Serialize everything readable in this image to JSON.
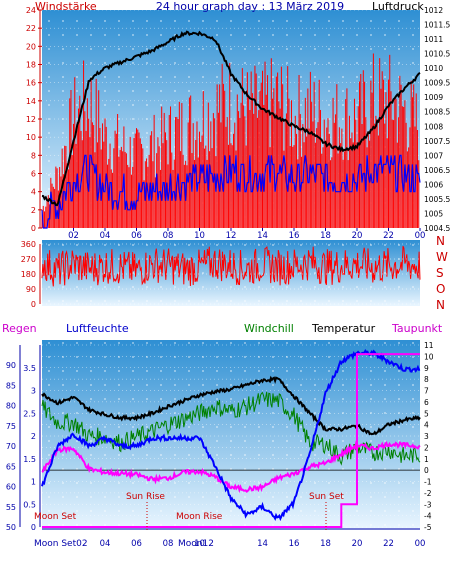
{
  "header": {
    "title": "24 hour graph day : 13 März 2019",
    "left_label": "Windstärke",
    "right_label": "Luftdruck"
  },
  "bottom_header": {
    "regen": "Regen",
    "luftfeuchte": "Luftfeuchte",
    "windchill": "Windchill",
    "temperatur": "Temperatur",
    "taupunkt": "Taupunkt"
  },
  "colors": {
    "wind": "#ff0000",
    "gust": "#ff0000",
    "avg_wind": "#0000ff",
    "pressure": "#000000",
    "direction": "#ff0000",
    "rain": "#ff00ff",
    "humidity": "#0000ff",
    "windchill": "#008000",
    "temperature": "#000000",
    "dewpoint": "#ff00ff",
    "axis_left": "#cc0000",
    "axis_blue": "#0000aa",
    "astro_text": "#cc0000"
  },
  "x_ticks": [
    "02",
    "04",
    "06",
    "08",
    "10",
    "12",
    "14",
    "16",
    "18",
    "20",
    "22",
    "00"
  ],
  "chart_data": [
    {
      "type": "line",
      "name": "wind-pressure",
      "title": "24 hour graph day : 13 März 2019",
      "ylabel": "Windstärke",
      "ylabel_right": "Luftdruck",
      "ylim": [
        0,
        24
      ],
      "y_ticks": [
        0,
        2,
        4,
        6,
        8,
        10,
        12,
        14,
        16,
        18,
        20,
        22,
        24
      ],
      "ylim_right": [
        1004.5,
        1012
      ],
      "y_ticks_right": [
        1004.5,
        1005,
        1005.5,
        1006,
        1006.5,
        1007,
        1007.5,
        1008,
        1008.5,
        1009,
        1009.5,
        1010,
        1010.5,
        1011,
        1011.5,
        1012
      ],
      "x_hours": [
        0,
        1,
        2,
        3,
        4,
        5,
        6,
        7,
        8,
        9,
        10,
        11,
        12,
        13,
        14,
        15,
        16,
        17,
        18,
        19,
        20,
        21,
        22,
        23,
        24
      ],
      "series": [
        {
          "name": "Windstärke",
          "values": [
            2,
            6,
            12,
            14,
            10,
            9,
            8,
            9,
            10,
            11,
            12,
            13,
            14,
            13,
            13,
            14,
            12,
            13,
            12,
            12,
            12,
            14,
            14,
            13,
            11
          ]
        },
        {
          "name": "Luftdruck",
          "values": [
            1005.6,
            1005.3,
            1007.5,
            1009.6,
            1010.0,
            1010.2,
            1010.4,
            1010.6,
            1010.9,
            1011.2,
            1011.2,
            1011.0,
            1009.8,
            1009.1,
            1008.6,
            1008.3,
            1008.0,
            1007.8,
            1007.4,
            1007.2,
            1007.3,
            1007.9,
            1008.7,
            1009.3,
            1009.8
          ]
        }
      ]
    },
    {
      "type": "line",
      "name": "wind-direction",
      "ylim": [
        0,
        360
      ],
      "y_ticks": [
        0,
        90,
        180,
        270,
        360
      ],
      "compass": [
        "N",
        "W",
        "S",
        "O",
        "N"
      ],
      "x_hours": [
        0,
        1,
        2,
        3,
        4,
        5,
        6,
        7,
        8,
        9,
        10,
        11,
        12,
        13,
        14,
        15,
        16,
        17,
        18,
        19,
        20,
        21,
        22,
        23,
        24
      ],
      "series": [
        {
          "name": "Windrichtung",
          "values": [
            250,
            200,
            240,
            210,
            230,
            220,
            200,
            240,
            230,
            210,
            220,
            250,
            230,
            210,
            240,
            220,
            230,
            250,
            220,
            230,
            240,
            220,
            230,
            240,
            230
          ]
        }
      ]
    },
    {
      "type": "line",
      "name": "temperature-humidity",
      "ylim": [
        -5,
        11
      ],
      "y_ticks": [
        -5,
        -4,
        -3,
        -2,
        -1,
        0,
        1,
        2,
        3,
        4,
        5,
        6,
        7,
        8,
        9,
        10,
        11
      ],
      "humidity_ticks": [
        50,
        55,
        60,
        65,
        70,
        75,
        80,
        85,
        90
      ],
      "humidity_ylim": [
        50,
        95
      ],
      "rain_ticks": [
        0,
        0.5,
        1,
        1.5,
        2,
        2.5,
        3,
        3.5
      ],
      "rain_ylim": [
        0,
        4
      ],
      "x_hours": [
        0,
        1,
        2,
        3,
        4,
        5,
        6,
        7,
        8,
        9,
        10,
        11,
        12,
        13,
        14,
        15,
        16,
        17,
        18,
        19,
        20,
        21,
        22,
        23,
        24
      ],
      "series": [
        {
          "name": "Temperatur",
          "values": [
            6.7,
            5.9,
            6.4,
            5.3,
            4.9,
            4.6,
            4.6,
            5.0,
            5.6,
            6.1,
            6.6,
            6.9,
            7.1,
            7.5,
            7.9,
            8.0,
            6.5,
            5.0,
            3.6,
            3.6,
            3.9,
            3.1,
            4.0,
            4.4,
            4.6
          ]
        },
        {
          "name": "Windchill",
          "values": [
            5.5,
            4.2,
            4.2,
            3.0,
            2.9,
            2.4,
            2.9,
            3.4,
            4.0,
            4.5,
            5.0,
            5.6,
            5.2,
            5.6,
            6.2,
            6.1,
            4.8,
            2.4,
            2.3,
            1.2,
            2.0,
            1.5,
            1.8,
            1.2,
            1.4
          ]
        },
        {
          "name": "Taupunkt",
          "values": [
            -0.2,
            1.8,
            1.9,
            0.1,
            -0.2,
            -0.3,
            -0.4,
            -0.8,
            -0.7,
            -0.2,
            -0.1,
            -0.6,
            -1.5,
            -1.7,
            -1.5,
            -0.7,
            -0.3,
            0.3,
            0.6,
            1.4,
            2.2,
            1.9,
            2.3,
            2.2,
            2.1
          ]
        },
        {
          "name": "Luftfeuchte",
          "values": [
            60,
            70,
            73,
            70,
            72,
            70,
            70,
            72,
            72,
            72,
            72,
            65,
            57,
            53,
            55,
            52,
            56,
            68,
            83,
            91,
            93,
            93,
            91,
            89,
            89
          ]
        },
        {
          "name": "Regen",
          "values": [
            0,
            0,
            0,
            0,
            0,
            0,
            0,
            0,
            0,
            0,
            0,
            0,
            0,
            0,
            0,
            0,
            0,
            0,
            0,
            0.5,
            3.8,
            3.8,
            3.8,
            3.8,
            3.8
          ]
        }
      ]
    }
  ],
  "astro": {
    "moon_set_bottom": "Moon Set",
    "moon_set_label": "Moon Set",
    "sun_rise_label": "Sun Rise",
    "moon_rise_label": "Moon Rise",
    "sun_set_label": "Sun Set",
    "bottom_tick_moon_set_02": "Moon Set02",
    "bottom_tick_moon_rise_12": "Moon12"
  }
}
